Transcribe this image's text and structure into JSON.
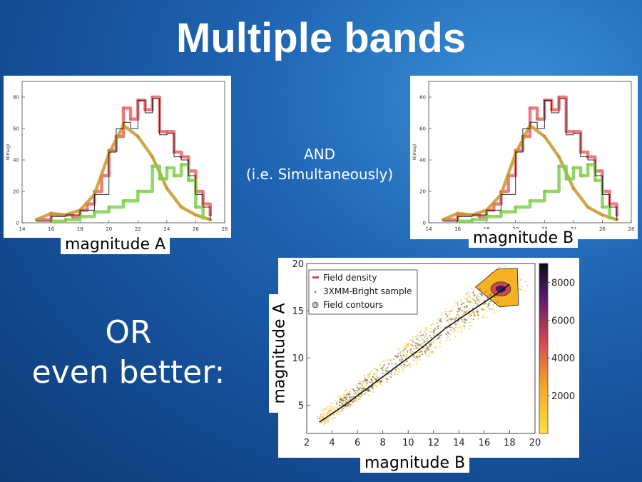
{
  "slide": {
    "title": "Multiple bands",
    "and_line1": "AND",
    "and_line2": "(i.e. Simultaneously)",
    "or_line1": "OR",
    "or_line2": "even better:",
    "label_mag_a": "magnitude A",
    "label_mag_b": "magnitude B",
    "label_scatter_y": "magnitude A",
    "label_scatter_x": "magnitude B"
  },
  "colors": {
    "red": "#e8666a",
    "orange": "#c8962c",
    "green": "#7fcf4a",
    "black": "#111111"
  },
  "chart_data": [
    {
      "type": "line",
      "ylabel": "N(mag)",
      "xlim": [
        14,
        28
      ],
      "ylim": [
        0,
        90
      ],
      "xticks": [
        "14",
        "16",
        "18",
        "20",
        "22",
        "24",
        "26",
        "28"
      ],
      "yticks": [
        "0",
        "20",
        "40",
        "60",
        "80"
      ],
      "series": [
        {
          "color_key": "red",
          "x": [
            15,
            16,
            17,
            17.5,
            18,
            18.5,
            19,
            19.5,
            20,
            20.5,
            21,
            21.5,
            22,
            22.5,
            23,
            23.5,
            24,
            24.5,
            25,
            25.5,
            26,
            26.5,
            27
          ],
          "values": [
            2,
            5,
            5,
            4,
            8,
            12,
            20,
            30,
            46,
            55,
            73,
            66,
            78,
            72,
            80,
            58,
            58,
            45,
            42,
            33,
            20,
            12,
            5
          ]
        },
        {
          "color_key": "orange",
          "x": [
            15,
            16,
            17,
            18,
            19,
            20,
            21,
            22,
            23,
            24,
            25,
            26,
            27
          ],
          "values": [
            2,
            6,
            5,
            8,
            18,
            44,
            62,
            55,
            42,
            22,
            10,
            5,
            2
          ]
        },
        {
          "color_key": "green",
          "x": [
            16,
            17,
            18,
            19,
            20,
            21,
            22,
            23,
            23.5,
            24,
            24.5,
            25,
            25.5,
            26,
            26.5
          ],
          "values": [
            1,
            2,
            4,
            7,
            10,
            14,
            20,
            36,
            28,
            35,
            30,
            37,
            27,
            10,
            3
          ]
        },
        {
          "color_key": "black",
          "x": [
            15,
            16,
            17,
            18,
            19,
            20,
            20.5,
            21,
            21.5,
            22,
            22.5,
            23,
            23.5,
            24,
            24.5,
            25,
            25.5,
            26,
            26.5,
            27
          ],
          "values": [
            1,
            4,
            5,
            8,
            18,
            45,
            60,
            64,
            60,
            78,
            70,
            79,
            56,
            57,
            42,
            40,
            30,
            18,
            10,
            2
          ]
        }
      ]
    },
    {
      "type": "line",
      "ylabel": "N(mag)",
      "xlim": [
        14,
        28
      ],
      "ylim": [
        0,
        90
      ],
      "xticks": [
        "14",
        "16",
        "18",
        "20",
        "22",
        "24",
        "26",
        "28"
      ],
      "yticks": [
        "0",
        "20",
        "40",
        "60",
        "80"
      ],
      "series": [
        {
          "color_key": "red",
          "x": [
            15,
            16,
            17,
            17.5,
            18,
            18.5,
            19,
            19.5,
            20,
            20.5,
            21,
            21.5,
            22,
            22.5,
            23,
            23.5,
            24,
            24.5,
            25,
            25.5,
            26,
            26.5,
            27
          ],
          "values": [
            2,
            5,
            5,
            4,
            8,
            12,
            20,
            30,
            46,
            55,
            73,
            66,
            78,
            72,
            80,
            58,
            58,
            45,
            42,
            33,
            20,
            12,
            5
          ]
        },
        {
          "color_key": "orange",
          "x": [
            15,
            16,
            17,
            18,
            19,
            20,
            21,
            22,
            23,
            24,
            25,
            26,
            27
          ],
          "values": [
            2,
            6,
            5,
            8,
            18,
            44,
            62,
            55,
            42,
            22,
            10,
            5,
            2
          ]
        },
        {
          "color_key": "green",
          "x": [
            16,
            17,
            18,
            19,
            20,
            21,
            22,
            23,
            23.5,
            24,
            24.5,
            25,
            25.5,
            26,
            26.5
          ],
          "values": [
            1,
            2,
            4,
            7,
            10,
            14,
            20,
            36,
            28,
            35,
            30,
            37,
            27,
            10,
            3
          ]
        },
        {
          "color_key": "black",
          "x": [
            15,
            16,
            17,
            18,
            19,
            20,
            20.5,
            21,
            21.5,
            22,
            22.5,
            23,
            23.5,
            24,
            24.5,
            25,
            25.5,
            26,
            26.5,
            27
          ],
          "values": [
            1,
            4,
            5,
            8,
            18,
            45,
            60,
            64,
            60,
            78,
            70,
            79,
            56,
            57,
            42,
            40,
            30,
            18,
            10,
            2
          ]
        }
      ]
    },
    {
      "type": "scatter",
      "xlim": [
        2,
        20
      ],
      "ylim": [
        2,
        20
      ],
      "xticks": [
        "2",
        "4",
        "6",
        "8",
        "10",
        "12",
        "14",
        "16",
        "18",
        "20"
      ],
      "yticks": [
        "5",
        "10",
        "15",
        "20"
      ],
      "legend": [
        "Field density",
        "3XMM-Bright sample",
        "Field contours"
      ],
      "legend_position": "top-left",
      "colorbar": {
        "ticks": [
          "2000",
          "4000",
          "6000",
          "8000"
        ],
        "range": [
          0,
          9000
        ]
      },
      "trend_x": [
        3,
        5,
        7,
        9,
        11,
        13,
        15,
        17,
        18
      ],
      "trend_y": [
        3.2,
        5,
        7,
        9,
        11,
        13.2,
        15,
        16.8,
        17.8
      ]
    }
  ]
}
